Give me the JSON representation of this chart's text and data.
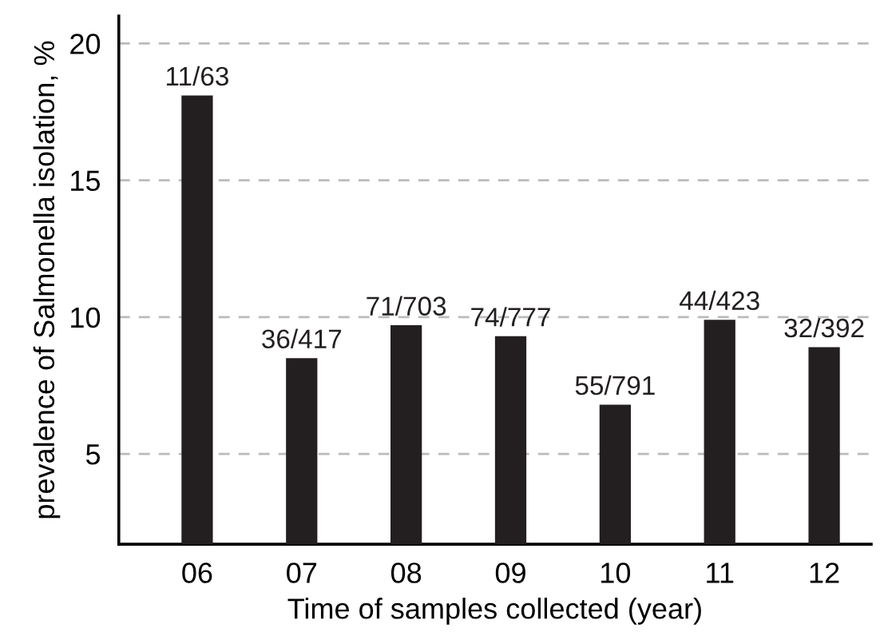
{
  "chart_data": {
    "type": "bar",
    "xlabel": "Time of samples collected (year)",
    "ylabel": "prevalence of Salmonella isolation, %",
    "categories": [
      "06",
      "07",
      "08",
      "09",
      "10",
      "11",
      "12"
    ],
    "values": [
      18.1,
      8.5,
      9.7,
      9.3,
      6.8,
      9.9,
      8.9
    ],
    "value_labels": [
      "11/63",
      "36/417",
      "71/703",
      "74/777",
      "55/791",
      "44/423",
      "32/392"
    ],
    "color": "#231f20",
    "ylim": [
      1.7,
      21
    ],
    "yticks": [
      5,
      10,
      15,
      20
    ],
    "grid": "y"
  }
}
